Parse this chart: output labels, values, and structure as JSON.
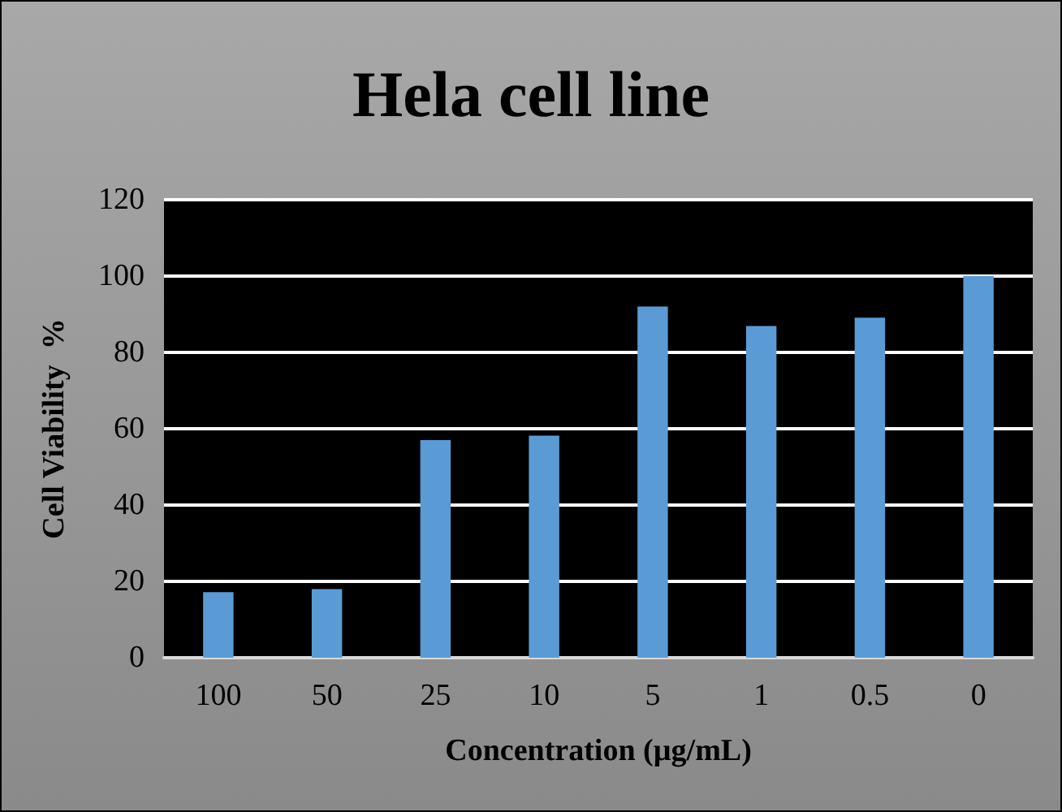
{
  "chart_data": {
    "type": "bar",
    "title": "Hela cell line",
    "xlabel": "Concentration (µg/mL)",
    "ylabel": "Cell Viability  %",
    "categories": [
      "100",
      "50",
      "25",
      "10",
      "5",
      "1",
      "0.5",
      "0"
    ],
    "values": [
      17.2,
      18,
      57,
      58.2,
      92,
      86.9,
      89.1,
      100
    ],
    "color": "#5b9bd5",
    "ylim": [
      0,
      120
    ],
    "yticks": [
      0,
      20,
      40,
      60,
      80,
      100,
      120
    ],
    "grid": "y"
  }
}
